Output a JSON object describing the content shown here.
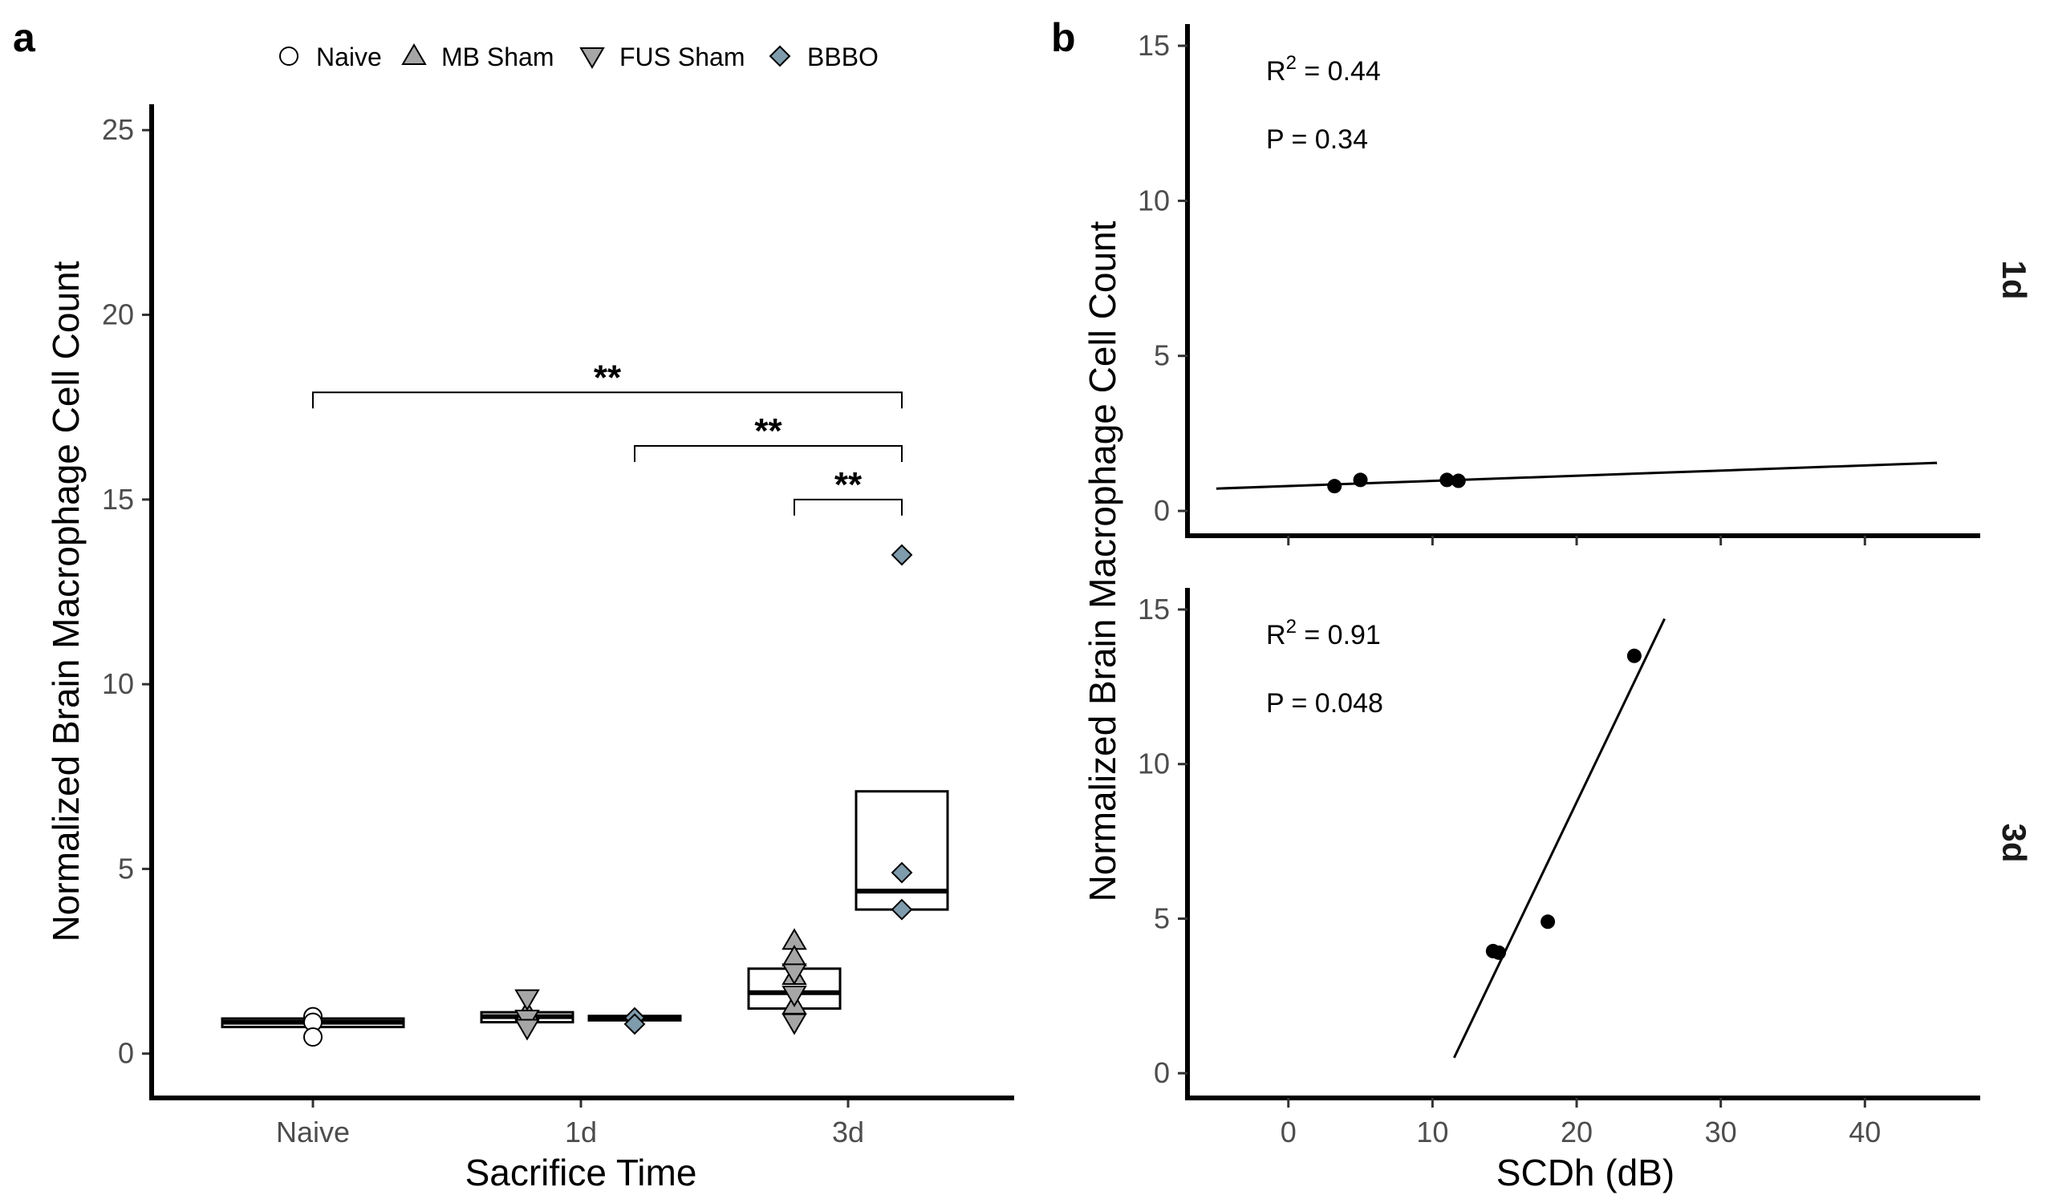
{
  "colors": {
    "naive": "#ffffff",
    "mb_sham": "#a6a6a6",
    "fus_sham": "#a6a6a6",
    "bbbo": "#7f9cac",
    "regression_line": "#000000"
  },
  "chart_data": [
    {
      "panel": "a",
      "type": "box",
      "xlabel": "Sacrifice Time",
      "ylabel": "Normalized Brain Macrophage Cell Count",
      "categories": [
        "Naive",
        "1d",
        "3d"
      ],
      "ylim": [
        -1.2,
        25.7
      ],
      "yticks": [
        0,
        5,
        10,
        15,
        20,
        25
      ],
      "legend": {
        "position": "top",
        "entries": [
          {
            "label": "Naive",
            "shape": "circle",
            "color": "#ffffff"
          },
          {
            "label": "MB Sham",
            "shape": "triangle-up",
            "color": "#a6a6a6"
          },
          {
            "label": "FUS Sham",
            "shape": "triangle-down",
            "color": "#a6a6a6"
          },
          {
            "label": "BBBO",
            "shape": "diamond",
            "color": "#7f9cac"
          }
        ]
      },
      "boxes": [
        {
          "category": "Naive",
          "group": "Naive",
          "offset": 0.0,
          "q1": 0.72,
          "median": 0.85,
          "q3": 0.95
        },
        {
          "category": "1d",
          "group": "Sham",
          "offset": -0.1,
          "q1": 0.85,
          "median": 1.0,
          "q3": 1.12
        },
        {
          "category": "1d",
          "group": "BBBO",
          "offset": 0.1,
          "q1": 0.9,
          "median": 0.97,
          "q3": 1.02
        },
        {
          "category": "3d",
          "group": "Sham",
          "offset": -0.1,
          "q1": 1.22,
          "median": 1.65,
          "q3": 2.3
        },
        {
          "category": "3d",
          "group": "BBBO",
          "offset": 0.1,
          "q1": 3.9,
          "median": 4.4,
          "q3": 7.1
        }
      ],
      "series": [
        {
          "name": "Naive",
          "shape": "circle",
          "points": [
            {
              "category": "Naive",
              "offset": 0.0,
              "y": 1.0
            },
            {
              "category": "Naive",
              "offset": 0.0,
              "y": 0.85
            },
            {
              "category": "Naive",
              "offset": 0.0,
              "y": 0.45
            }
          ]
        },
        {
          "name": "MB Sham",
          "shape": "triangle-up",
          "points": [
            {
              "category": "1d",
              "offset": -0.1,
              "y": 1.1
            },
            {
              "category": "3d",
              "offset": -0.1,
              "y": 3.05
            },
            {
              "category": "3d",
              "offset": -0.1,
              "y": 2.6
            },
            {
              "category": "3d",
              "offset": -0.1,
              "y": 2.1
            },
            {
              "category": "3d",
              "offset": -0.1,
              "y": 1.3
            }
          ]
        },
        {
          "name": "FUS Sham",
          "shape": "triangle-down",
          "points": [
            {
              "category": "1d",
              "offset": -0.1,
              "y": 1.5
            },
            {
              "category": "1d",
              "offset": -0.1,
              "y": 0.95
            },
            {
              "category": "1d",
              "offset": -0.1,
              "y": 0.7
            },
            {
              "category": "3d",
              "offset": -0.1,
              "y": 2.2
            },
            {
              "category": "3d",
              "offset": -0.1,
              "y": 1.6
            },
            {
              "category": "3d",
              "offset": -0.1,
              "y": 0.85
            }
          ]
        },
        {
          "name": "BBBO",
          "shape": "diamond",
          "points": [
            {
              "category": "1d",
              "offset": 0.1,
              "y": 0.97
            },
            {
              "category": "1d",
              "offset": 0.1,
              "y": 0.8
            },
            {
              "category": "3d",
              "offset": 0.1,
              "y": 13.5
            },
            {
              "category": "3d",
              "offset": 0.1,
              "y": 4.9
            },
            {
              "category": "3d",
              "offset": 0.1,
              "y": 3.9
            }
          ]
        }
      ],
      "significance": [
        {
          "from": "Naive",
          "from_offset": 0.0,
          "to": "3d",
          "to_offset": 0.1,
          "y": 17.9,
          "label": "**"
        },
        {
          "from": "1d",
          "from_offset": 0.1,
          "to": "3d",
          "to_offset": 0.1,
          "y": 16.45,
          "label": "**"
        },
        {
          "from": "3d",
          "from_offset": -0.1,
          "to": "3d",
          "to_offset": 0.1,
          "y": 15.0,
          "label": "**"
        }
      ]
    },
    {
      "panel": "b",
      "type": "scatter",
      "xlabel": "SCDh (dB)",
      "ylabel": "Normalized Brain Macrophage Cell Count",
      "xlim": [
        -7,
        48
      ],
      "xticks": [
        0,
        10,
        20,
        30,
        40
      ],
      "facets": [
        {
          "label": "1d",
          "ylim": [
            -0.8,
            15.7
          ],
          "yticks": [
            0,
            5,
            10,
            15
          ],
          "r2_label": "R",
          "r2_sup": "2",
          "r2_value": " = 0.44",
          "p_text": "P = 0.34",
          "points": [
            {
              "x": 3.2,
              "y": 0.8
            },
            {
              "x": 5.0,
              "y": 1.0
            },
            {
              "x": 11.0,
              "y": 1.0
            },
            {
              "x": 11.8,
              "y": 0.97
            }
          ],
          "fit": {
            "x1": -5,
            "y1": 0.72,
            "x2": 45,
            "y2": 1.55
          }
        },
        {
          "label": "3d",
          "ylim": [
            -0.8,
            15.7
          ],
          "yticks": [
            0,
            5,
            10,
            15
          ],
          "r2_label": "R",
          "r2_sup": "2",
          "r2_value": " = 0.91",
          "p_text": "P = 0.048",
          "points": [
            {
              "x": 24.0,
              "y": 13.5
            },
            {
              "x": 18.0,
              "y": 4.9
            },
            {
              "x": 14.2,
              "y": 3.95
            },
            {
              "x": 14.6,
              "y": 3.9
            }
          ],
          "fit": {
            "x1": 11.5,
            "y1": 0.5,
            "x2": 26.1,
            "y2": 14.7
          }
        }
      ]
    }
  ]
}
